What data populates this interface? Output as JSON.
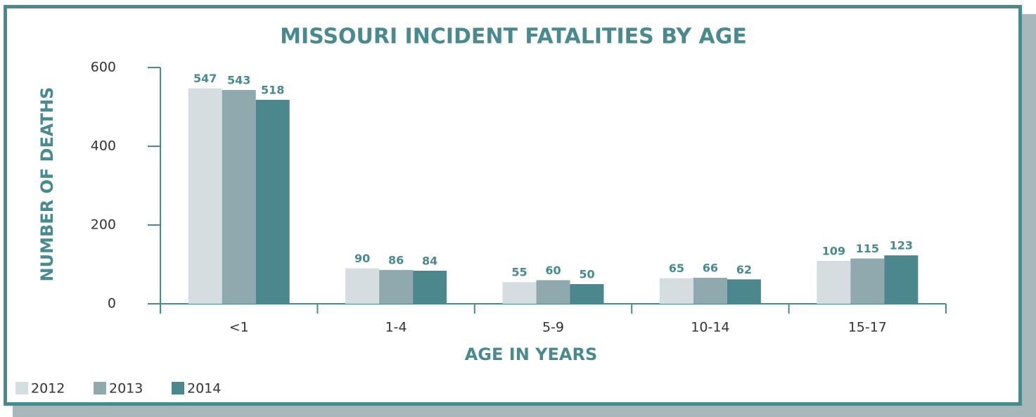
{
  "chart_data": {
    "type": "bar",
    "title": "MISSOURI INCIDENT FATALITIES BY AGE",
    "x_label": "AGE IN YEARS",
    "y_label": "NUMBER OF DEATHS",
    "categories": [
      "<1",
      "1-4",
      "5-9",
      "10-14",
      "15-17"
    ],
    "series": [
      {
        "name": "2012",
        "color": "#d5dde0",
        "values": [
          547,
          90,
          55,
          65,
          109
        ]
      },
      {
        "name": "2013",
        "color": "#8fa9ae",
        "values": [
          543,
          86,
          60,
          66,
          115
        ]
      },
      {
        "name": "2014",
        "color": "#4b878c",
        "values": [
          518,
          84,
          50,
          62,
          123
        ]
      }
    ],
    "ylim": [
      0,
      600
    ],
    "yticks": [
      0,
      200,
      400,
      600
    ]
  }
}
